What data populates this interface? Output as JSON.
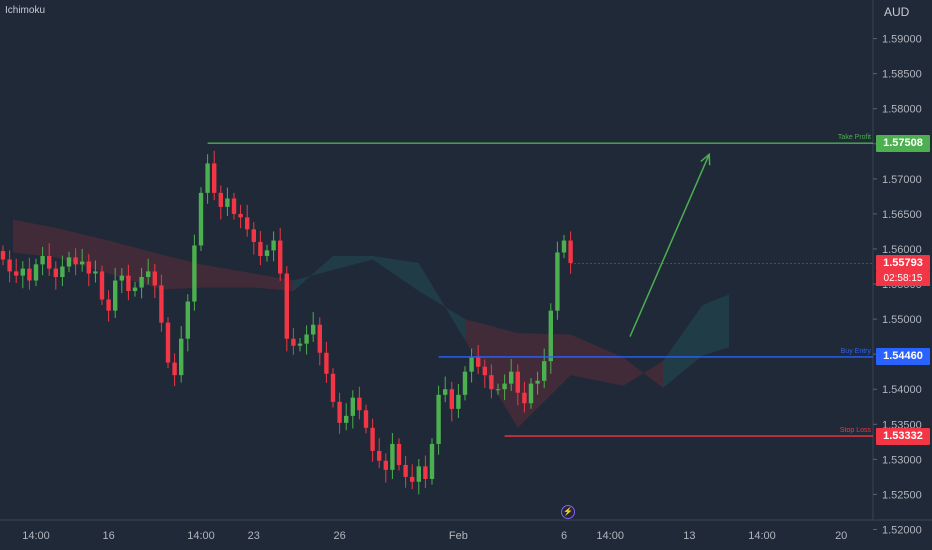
{
  "indicator_label": "Ichimoku",
  "currency_label": "AUD",
  "current_price": "1.55793",
  "countdown": "02:58:15",
  "event_icon": "lightning-icon",
  "colors": {
    "background": "#1f2937",
    "bull": "#26a69a",
    "bull_candle": "#4caf50",
    "bear_candle": "#f23645",
    "take_profit": "#4caf50",
    "buy_entry": "#2962ff",
    "stop_loss": "#f23645",
    "cloud_red": "#f23645",
    "cloud_green": "#26a69a"
  },
  "chart_data": {
    "type": "candlestick",
    "title": "",
    "ylim": [
      1.5175,
      1.5955
    ],
    "y_ticks": [
      "1.59000",
      "1.58500",
      "1.58000",
      "1.57500",
      "1.57000",
      "1.56500",
      "1.56000",
      "1.55500",
      "1.55000",
      "1.54500",
      "1.54000",
      "1.53500",
      "1.53000",
      "1.52500",
      "1.52000"
    ],
    "y_tick_values": [
      1.59,
      1.585,
      1.58,
      1.575,
      1.57,
      1.565,
      1.56,
      1.555,
      1.55,
      1.545,
      1.54,
      1.535,
      1.53,
      1.525,
      1.52
    ],
    "x_ticks": [
      "14:00",
      "16",
      "14:00",
      "23",
      "26",
      "Feb",
      "6",
      "14:00",
      "13",
      "14:00",
      "20"
    ],
    "x_tick_index": [
      5,
      16,
      30,
      38,
      51,
      69,
      85,
      92,
      104,
      115,
      127
    ],
    "candles_count": 87,
    "levels": [
      {
        "name": "Take Profit",
        "value": 1.57508,
        "label": "1.57508",
        "start_index": 31
      },
      {
        "name": "Buy Entry",
        "value": 1.5446,
        "label": "1.54460",
        "start_index": 66
      },
      {
        "name": "Stop Loss",
        "value": 1.53332,
        "label": "1.53332",
        "start_index": 76
      }
    ],
    "closes": [
      1.5585,
      1.5568,
      1.5562,
      1.5572,
      1.5555,
      1.5578,
      1.559,
      1.5572,
      1.556,
      1.5575,
      1.5588,
      1.5578,
      1.5582,
      1.5565,
      1.5568,
      1.5528,
      1.5512,
      1.5555,
      1.5562,
      1.554,
      1.5545,
      1.556,
      1.5568,
      1.5548,
      1.5495,
      1.5438,
      1.542,
      1.5472,
      1.5525,
      1.5605,
      1.568,
      1.5722,
      1.568,
      1.566,
      1.5672,
      1.565,
      1.5645,
      1.5628,
      1.561,
      1.559,
      1.5598,
      1.5612,
      1.5565,
      1.5472,
      1.5462,
      1.5465,
      1.5478,
      1.5492,
      1.5452,
      1.5422,
      1.5382,
      1.5352,
      1.5362,
      1.5388,
      1.537,
      1.5345,
      1.5312,
      1.5298,
      1.5285,
      1.5322,
      1.5292,
      1.5275,
      1.5268,
      1.529,
      1.5272,
      1.5322,
      1.5392,
      1.54,
      1.5372,
      1.5392,
      1.5425,
      1.5445,
      1.5432,
      1.542,
      1.54,
      1.54,
      1.5408,
      1.5425,
      1.5395,
      1.538,
      1.5408,
      1.5412,
      1.544,
      1.5512,
      1.5595,
      1.5612,
      1.558
    ],
    "cloud": [
      {
        "x": 1.5,
        "a": 1.5642,
        "b": 1.5595
      },
      {
        "x": 8,
        "a": 1.563,
        "b": 1.5588
      },
      {
        "x": 16,
        "a": 1.5612,
        "b": 1.5565
      },
      {
        "x": 24,
        "a": 1.5592,
        "b": 1.5542
      },
      {
        "x": 30,
        "a": 1.5578,
        "b": 1.5545
      },
      {
        "x": 38,
        "a": 1.5565,
        "b": 1.5545
      },
      {
        "x": 44,
        "a": 1.5555,
        "b": 1.554
      },
      {
        "x": 50,
        "a": 1.557,
        "b": 1.559
      },
      {
        "x": 56,
        "a": 1.5585,
        "b": 1.559
      },
      {
        "x": 63,
        "a": 1.554,
        "b": 1.558
      },
      {
        "x": 70,
        "a": 1.55,
        "b": 1.547
      },
      {
        "x": 78,
        "a": 1.548,
        "b": 1.5345
      },
      {
        "x": 86,
        "a": 1.5478,
        "b": 1.542
      },
      {
        "x": 94,
        "a": 1.5445,
        "b": 1.5405
      },
      {
        "x": 100,
        "a": 1.5402,
        "b": 1.544
      },
      {
        "x": 106,
        "a": 1.5448,
        "b": 1.552
      },
      {
        "x": 110,
        "a": 1.546,
        "b": 1.5535
      }
    ],
    "projection": {
      "from_index": 95,
      "from_value": 1.5475,
      "to_index": 107,
      "to_value": 1.5735
    }
  }
}
